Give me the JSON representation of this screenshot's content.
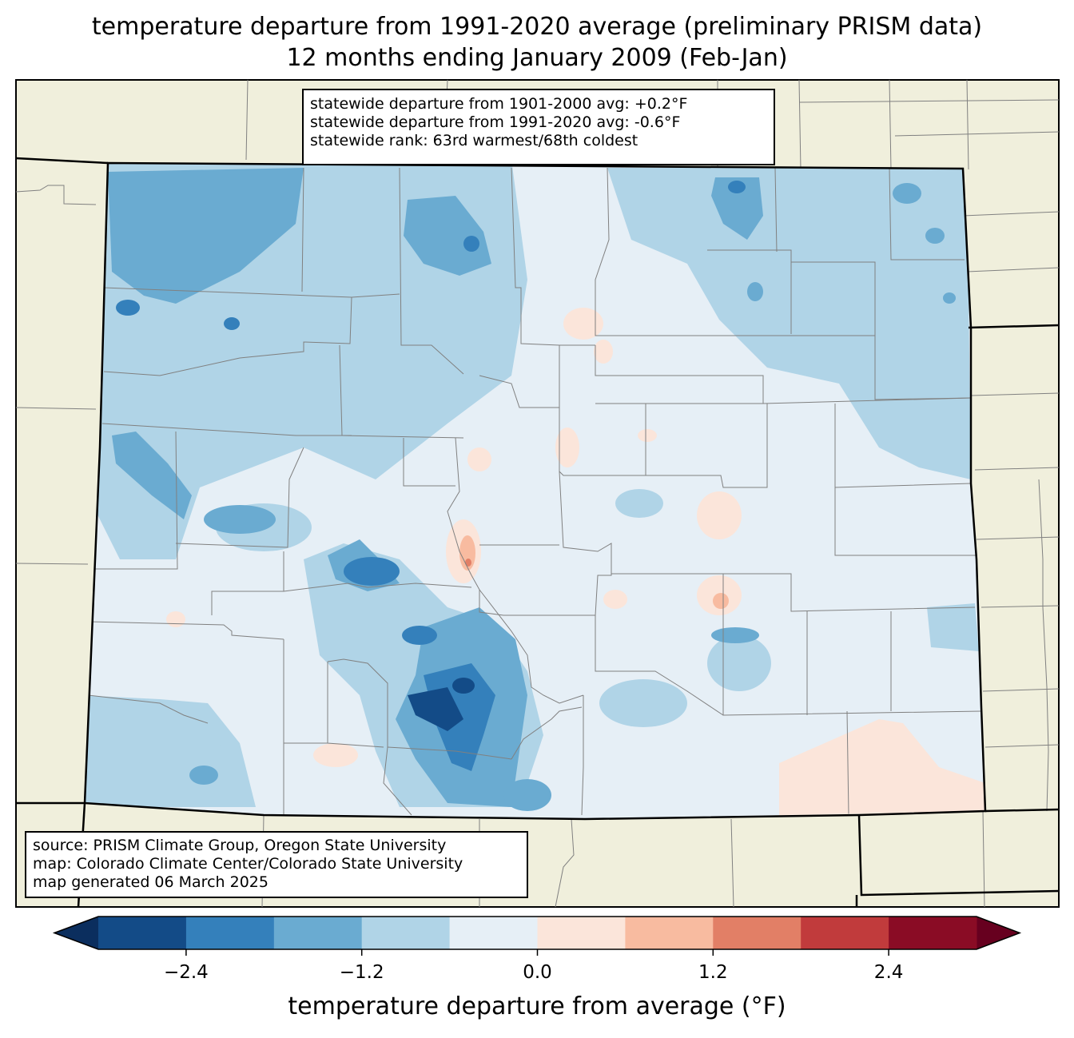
{
  "title": {
    "line1": "temperature departure from 1991-2020 average (preliminary PRISM data)",
    "line2": "12 months ending January 2009 (Feb-Jan)"
  },
  "stats": {
    "line1": "statewide departure from 1901-2000 avg: +0.2°F",
    "line2": "statewide departure from 1991-2020 avg: -0.6°F",
    "line3": "statewide rank: 63rd warmest/68th coldest"
  },
  "source": {
    "line1": "source: PRISM Climate Group, Oregon State University",
    "line2": "map: Colorado Climate Center/Colorado State University",
    "line3": "map generated 06 March 2025"
  },
  "colorbar": {
    "label": "temperature departure from average (°F)",
    "ticks": [
      "−2.4",
      "−1.2",
      "0.0",
      "1.2",
      "2.4"
    ],
    "tick_values": [
      -2.4,
      -1.2,
      0.0,
      1.2,
      2.4
    ],
    "range": [
      -3.0,
      3.0
    ],
    "step": 0.6,
    "colors": [
      "#134b87",
      "#3480bb",
      "#6aabd1",
      "#b0d4e7",
      "#e6eff6",
      "#fbe5da",
      "#f8bba0",
      "#e27f66",
      "#c13b3c",
      "#8a0c25"
    ],
    "extend_low_color": "#0b2e5e",
    "extend_high_color": "#67001f"
  },
  "map_colors": {
    "background": "#f0efdc",
    "state_border": "#000000",
    "county_border": "#808080"
  }
}
